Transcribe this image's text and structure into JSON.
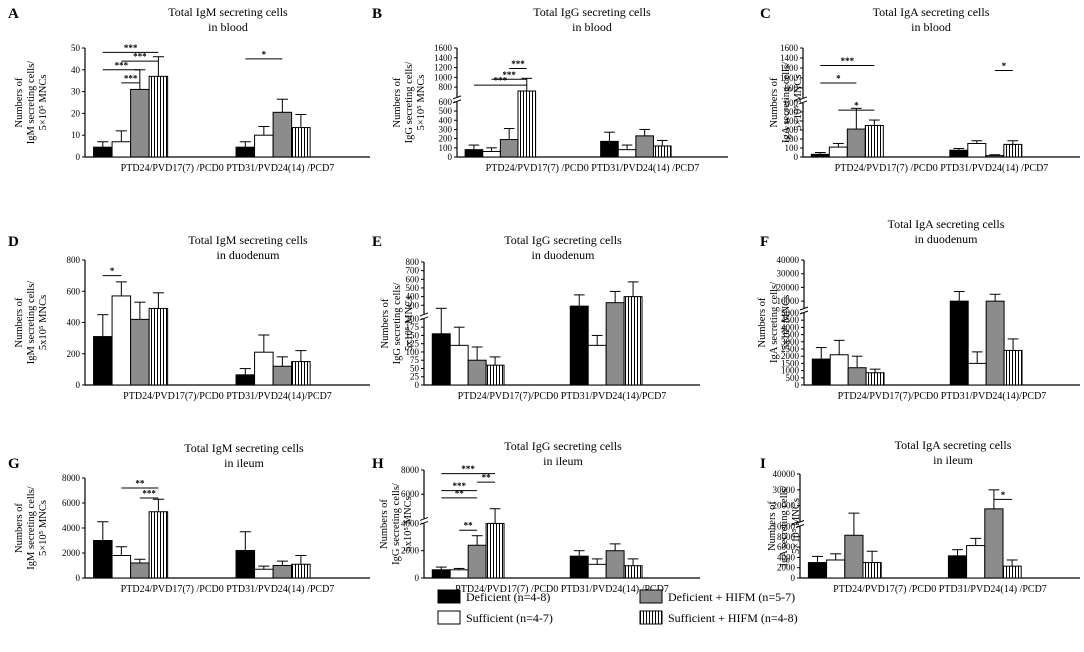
{
  "figure_legend": {
    "items": [
      {
        "name": "Deficient",
        "label": "Deficient  (n=4-8)",
        "fill": "#000000",
        "pattern": "solid"
      },
      {
        "name": "Sufficient",
        "label": "Sufficient  (n=4-7)",
        "fill": "#ffffff",
        "pattern": "open"
      },
      {
        "name": "Deficient + HIFM",
        "label": "Deficient  + HIFM  (n=5-7)",
        "fill": "#8c8c8c",
        "pattern": "solid"
      },
      {
        "name": "Sufficient + HIFM",
        "label": "Sufficient  + HIFM  (n=4-8)",
        "fill": "#ffffff",
        "pattern": "stripes"
      }
    ]
  },
  "chart_data": [
    {
      "panel": "A",
      "type": "bar",
      "title": [
        "Total IgM secreting cells",
        "in blood"
      ],
      "ylabel": [
        "Numbers of",
        "IgM secreting cells/",
        "5×10⁵ MNCs"
      ],
      "xlabel": "PTD24/PVD17(7) /PCD0 PTD31/PVD24(14) /PCD7",
      "categories": [
        "PTD24/PVD17(7) /PCD0",
        "PTD31/PVD24(14) /PCD7"
      ],
      "ylim": [
        0,
        50
      ],
      "yticks": [
        0,
        10,
        20,
        30,
        40,
        50
      ],
      "ytick_labels": [
        "0",
        "10",
        "20",
        "30",
        "40",
        "50"
      ],
      "series": [
        {
          "name": "Deficient",
          "values": [
            4.5,
            4.5
          ],
          "errors": [
            2.5,
            2.5
          ]
        },
        {
          "name": "Sufficient",
          "values": [
            7,
            10
          ],
          "errors": [
            5,
            4
          ]
        },
        {
          "name": "Deficient + HIFM",
          "values": [
            31,
            20.5
          ],
          "errors": [
            9,
            6
          ]
        },
        {
          "name": "Sufficient + HIFM",
          "values": [
            37,
            13.5
          ],
          "errors": [
            9,
            6
          ]
        }
      ],
      "significance": [
        {
          "group": 0,
          "from": 0,
          "to": 3,
          "level": 48,
          "label": "***"
        },
        {
          "group": 0,
          "from": 1,
          "to": 3,
          "level": 44,
          "label": "***"
        },
        {
          "group": 0,
          "from": 0,
          "to": 2,
          "level": 40,
          "label": "***"
        },
        {
          "group": 0,
          "from": 1,
          "to": 2,
          "level": 34,
          "label": "***"
        },
        {
          "group": 1,
          "from": 0,
          "to": 2,
          "level": 45,
          "label": "*"
        }
      ]
    },
    {
      "panel": "B",
      "type": "bar",
      "title": [
        "Total IgG secreting cells",
        "in blood"
      ],
      "ylabel": [
        "Numbers of",
        "IgG secreting cells/",
        "5×10⁵ MNCs"
      ],
      "xlabel": "PTD24/PVD17(7) /PCD0 PTD31/PVD24(14) /PCD7",
      "categories": [
        "PTD24/PVD17(7) /PCD0",
        "PTD31/PVD24(14) /PCD7"
      ],
      "ylim": [
        0,
        1600
      ],
      "axis_break": {
        "lower": [
          0,
          600
        ],
        "upper": [
          600,
          1600
        ],
        "split": 0.53
      },
      "yticks": [
        0,
        100,
        200,
        300,
        400,
        500,
        600,
        800,
        1000,
        1200,
        1400,
        1600
      ],
      "ytick_labels": [
        "0",
        "100",
        "200",
        "300",
        "400",
        "500",
        "600",
        "800",
        "1000",
        "1200",
        "1400",
        "1600"
      ],
      "series": [
        {
          "name": "Deficient",
          "values": [
            80,
            170
          ],
          "errors": [
            50,
            100
          ]
        },
        {
          "name": "Sufficient",
          "values": [
            60,
            80
          ],
          "errors": [
            40,
            50
          ]
        },
        {
          "name": "Deficient + HIFM",
          "values": [
            190,
            230
          ],
          "errors": [
            120,
            70
          ]
        },
        {
          "name": "Sufficient + HIFM",
          "values": [
            720,
            120
          ],
          "errors": [
            260,
            60
          ]
        }
      ],
      "significance": [
        {
          "group": 0,
          "from": 2,
          "to": 3,
          "level": 1180,
          "label": "***"
        },
        {
          "group": 0,
          "from": 1,
          "to": 3,
          "level": 960,
          "label": "***"
        },
        {
          "group": 0,
          "from": 0,
          "to": 3,
          "level": 840,
          "label": "***"
        }
      ]
    },
    {
      "panel": "C",
      "type": "bar",
      "title": [
        "Total IgA secreting cells",
        "in blood"
      ],
      "ylabel": [
        "Numbers of",
        "IgA secreting cells/",
        "5×10⁵ MNCs"
      ],
      "xlabel": "PTD24/PVD17(7) /PCD0 PTD31/PVD24(14) /PCD7",
      "categories": [
        "PTD24/PVD17(7) /PCD0",
        "PTD31/PVD24(14) /PCD7"
      ],
      "ylim": [
        0,
        1600
      ],
      "axis_break": {
        "lower": [
          0,
          600
        ],
        "upper": [
          600,
          1600
        ],
        "split": 0.52
      },
      "yticks": [
        0,
        100,
        200,
        300,
        400,
        500,
        600,
        800,
        1000,
        1200,
        1400,
        1600
      ],
      "ytick_labels": [
        "0",
        "100",
        "200",
        "300",
        "400",
        "500",
        "600",
        "800",
        "1000",
        "1200",
        "1400",
        "1600"
      ],
      "series": [
        {
          "name": "Deficient",
          "values": [
            30,
            75
          ],
          "errors": [
            20,
            20
          ]
        },
        {
          "name": "Sufficient",
          "values": [
            110,
            150
          ],
          "errors": [
            40,
            30
          ]
        },
        {
          "name": "Deficient + HIFM",
          "values": [
            310,
            15
          ],
          "errors": [
            230,
            10
          ]
        },
        {
          "name": "Sufficient + HIFM",
          "values": [
            350,
            140
          ],
          "errors": [
            60,
            40
          ]
        }
      ],
      "significance": [
        {
          "group": 0,
          "from": 0,
          "to": 3,
          "level": 1250,
          "label": "***"
        },
        {
          "group": 0,
          "from": 0,
          "to": 2,
          "level": 900,
          "label": "*"
        },
        {
          "group": 0,
          "from": 1,
          "to": 3,
          "level": 520,
          "label": "*"
        },
        {
          "group": 1,
          "from": 2,
          "to": 3,
          "level": 1150,
          "label": "*"
        }
      ]
    },
    {
      "panel": "D",
      "type": "bar",
      "title": [
        "Total IgM secreting cells",
        "in duodenum"
      ],
      "ylabel": [
        "Numbers of",
        "IgM secreting cells/",
        "5x10⁵ MNCs"
      ],
      "xlabel": "PTD24/PVD17(7)/PCD0 PTD31/PVD24(14)/PCD7",
      "categories": [
        "PTD24/PVD17(7)/PCD0",
        "PTD31/PVD24(14)/PCD7"
      ],
      "ylim": [
        0,
        800
      ],
      "yticks": [
        0,
        200,
        400,
        600,
        800
      ],
      "ytick_labels": [
        "0",
        "200",
        "400",
        "600",
        "800"
      ],
      "series": [
        {
          "name": "Deficient",
          "values": [
            310,
            65
          ],
          "errors": [
            140,
            40
          ]
        },
        {
          "name": "Sufficient",
          "values": [
            570,
            210
          ],
          "errors": [
            90,
            110
          ]
        },
        {
          "name": "Deficient + HIFM",
          "values": [
            420,
            120
          ],
          "errors": [
            110,
            60
          ]
        },
        {
          "name": "Sufficient + HIFM",
          "values": [
            490,
            150
          ],
          "errors": [
            100,
            70
          ]
        }
      ],
      "significance": [
        {
          "group": 0,
          "from": 0,
          "to": 1,
          "level": 700,
          "label": "*"
        }
      ]
    },
    {
      "panel": "E",
      "type": "bar",
      "title": [
        "Total IgG secreting cells",
        "in duodenum"
      ],
      "ylabel": [
        "Numbers of",
        "IgG secreting cells/",
        "5x10⁵ MNCs"
      ],
      "xlabel": "PTD24/PVD17(7)/PCD0 PTD31/PVD24(14)/PCD7",
      "categories": [
        "PTD24/PVD17(7)/PCD0",
        "PTD31/PVD24(14)/PCD7"
      ],
      "ylim": [
        0,
        800
      ],
      "axis_break": {
        "lower": [
          0,
          200
        ],
        "upper": [
          200,
          800
        ],
        "split": 0.56
      },
      "yticks": [
        0,
        25,
        50,
        75,
        100,
        125,
        150,
        175,
        200,
        300,
        400,
        500,
        600,
        700,
        800
      ],
      "ytick_labels": [
        "0",
        "25",
        "50",
        "75",
        "100",
        "125",
        "150",
        "175",
        "200",
        "300",
        "400",
        "500",
        "600",
        "700",
        "800"
      ],
      "series": [
        {
          "name": "Deficient",
          "values": [
            155,
            290
          ],
          "errors": [
            110,
            130
          ]
        },
        {
          "name": "Sufficient",
          "values": [
            120,
            120
          ],
          "errors": [
            55,
            30
          ]
        },
        {
          "name": "Deficient + HIFM",
          "values": [
            75,
            330
          ],
          "errors": [
            40,
            130
          ]
        },
        {
          "name": "Sufficient + HIFM",
          "values": [
            60,
            400
          ],
          "errors": [
            25,
            170
          ]
        }
      ],
      "significance": []
    },
    {
      "panel": "F",
      "type": "bar",
      "title": [
        "Total IgA secreting cells",
        "in duodenum"
      ],
      "ylabel": [
        "Numbers of",
        "IgA secreting cells/",
        "5x10⁵ MNCs"
      ],
      "xlabel": "PTD24/PVD17(7)/PCD0 PTD31/PVD24(14)/PCD7",
      "categories": [
        "PTD24/PVD17(7)/PCD0",
        "PTD31/PVD24(14)/PCD7"
      ],
      "ylim": [
        0,
        40000
      ],
      "axis_break": {
        "lower": [
          0,
          5000
        ],
        "upper": [
          5000,
          40000
        ],
        "split": 0.6
      },
      "yticks": [
        0,
        500,
        1000,
        1500,
        2000,
        2500,
        3000,
        3500,
        4000,
        4500,
        5000,
        10000,
        20000,
        30000,
        40000
      ],
      "ytick_labels": [
        "0",
        "500",
        "1000",
        "1500",
        "2000",
        "2500",
        "3000",
        "3500",
        "4000",
        "4500",
        "5000",
        "10000",
        "20000",
        "30000",
        "40000"
      ],
      "series": [
        {
          "name": "Deficient",
          "values": [
            1800,
            10000
          ],
          "errors": [
            800,
            7000
          ]
        },
        {
          "name": "Sufficient",
          "values": [
            2100,
            1500
          ],
          "errors": [
            1000,
            800
          ]
        },
        {
          "name": "Deficient + HIFM",
          "values": [
            1200,
            10000
          ],
          "errors": [
            800,
            5000
          ]
        },
        {
          "name": "Sufficient + HIFM",
          "values": [
            850,
            2400
          ],
          "errors": [
            250,
            800
          ]
        }
      ],
      "significance": []
    },
    {
      "panel": "G",
      "type": "bar",
      "title": [
        "Total IgM secreting cells",
        "in ileum"
      ],
      "ylabel": [
        "Numbers of",
        "IgM secreting cells/",
        "5×10⁵ MNCs"
      ],
      "xlabel": "PTD24/PVD17(7) /PCD0 PTD31/PVD24(14) /PCD7",
      "categories": [
        "PTD24/PVD17(7) /PCD0",
        "PTD31/PVD24(14) /PCD7"
      ],
      "ylim": [
        0,
        8000
      ],
      "yticks": [
        0,
        2000,
        4000,
        6000,
        8000
      ],
      "ytick_labels": [
        "0",
        "2000",
        "4000",
        "6000",
        "8000"
      ],
      "series": [
        {
          "name": "Deficient",
          "values": [
            3000,
            2200
          ],
          "errors": [
            1500,
            1500
          ]
        },
        {
          "name": "Sufficient",
          "values": [
            1800,
            700
          ],
          "errors": [
            700,
            250
          ]
        },
        {
          "name": "Deficient + HIFM",
          "values": [
            1200,
            1000
          ],
          "errors": [
            300,
            350
          ]
        },
        {
          "name": "Sufficient + HIFM",
          "values": [
            5300,
            1100
          ],
          "errors": [
            1000,
            700
          ]
        }
      ],
      "significance": [
        {
          "group": 0,
          "from": 1,
          "to": 3,
          "level": 7200,
          "label": "**"
        },
        {
          "group": 0,
          "from": 2,
          "to": 3,
          "level": 6400,
          "label": "***"
        }
      ]
    },
    {
      "panel": "H",
      "type": "bar",
      "title": [
        "Total IgG secreting cells",
        "in ileum"
      ],
      "ylabel": [
        "Numbers of",
        "IgG secreting cells/",
        "5x10⁵ MNCs"
      ],
      "xlabel": "PTD24/PVD17(7) /PCD0 PTD31/PVD24(14) /PCD7",
      "categories": [
        "PTD24/PVD17(7) /PCD0",
        "PTD31/PVD24(14) /PCD7"
      ],
      "ylim": [
        0,
        8000
      ],
      "axis_break": {
        "lower": [
          0,
          4000
        ],
        "upper": [
          4000,
          8000
        ],
        "split": 0.53
      },
      "yticks": [
        0,
        2000,
        4000,
        6000,
        8000
      ],
      "ytick_labels": [
        "0",
        "2000",
        "4000",
        "6000",
        "8000"
      ],
      "series": [
        {
          "name": "Deficient",
          "values": [
            600,
            1600
          ],
          "errors": [
            200,
            400
          ]
        },
        {
          "name": "Sufficient",
          "values": [
            600,
            1000
          ],
          "errors": [
            100,
            400
          ]
        },
        {
          "name": "Deficient + HIFM",
          "values": [
            2400,
            2000
          ],
          "errors": [
            700,
            500
          ]
        },
        {
          "name": "Sufficient + HIFM",
          "values": [
            4000,
            900
          ],
          "errors": [
            800,
            500
          ]
        }
      ],
      "significance": [
        {
          "group": 0,
          "from": 0,
          "to": 3,
          "level": 7700,
          "label": "***"
        },
        {
          "group": 0,
          "from": 2,
          "to": 3,
          "level": 7000,
          "label": "**"
        },
        {
          "group": 0,
          "from": 0,
          "to": 2,
          "level": 6300,
          "label": "***"
        },
        {
          "group": 0,
          "from": 0,
          "to": 2,
          "level": 5700,
          "label": "**"
        },
        {
          "group": 0,
          "from": 1,
          "to": 2,
          "level": 3500,
          "label": "**"
        }
      ]
    },
    {
      "panel": "I",
      "type": "bar",
      "title": [
        "Total IgA secreting cells",
        "in ileum"
      ],
      "ylabel": [
        "Numbers of",
        "IgA secreting cells/",
        "5×10⁵ MNCs"
      ],
      "xlabel": "PTD24/PVD17(7) /PCD0 PTD31/PVD24(14) /PCD7",
      "categories": [
        "PTD24/PVD17(7) /PCD0",
        "PTD31/PVD24(14) /PCD7"
      ],
      "ylim": [
        0,
        40000
      ],
      "axis_break": {
        "lower": [
          0,
          10000
        ],
        "upper": [
          10000,
          40000
        ],
        "split": 0.52
      },
      "yticks": [
        0,
        2000,
        4000,
        6000,
        8000,
        10000,
        20000,
        30000,
        40000
      ],
      "ytick_labels": [
        "0",
        "2000",
        "4000",
        "6000",
        "8000",
        "10000",
        "20000",
        "30000",
        "40000"
      ],
      "series": [
        {
          "name": "Deficient",
          "values": [
            3000,
            4300
          ],
          "errors": [
            1200,
            1200
          ]
        },
        {
          "name": "Sufficient",
          "values": [
            3500,
            6300
          ],
          "errors": [
            1200,
            1400
          ]
        },
        {
          "name": "Deficient + HIFM",
          "values": [
            8300,
            18000
          ],
          "errors": [
            7000,
            12000
          ]
        },
        {
          "name": "Sufficient + HIFM",
          "values": [
            3000,
            2300
          ],
          "errors": [
            2200,
            1200
          ]
        }
      ],
      "significance": [
        {
          "group": 1,
          "from": 2,
          "to": 3,
          "level": 24000,
          "label": "*"
        }
      ]
    }
  ]
}
